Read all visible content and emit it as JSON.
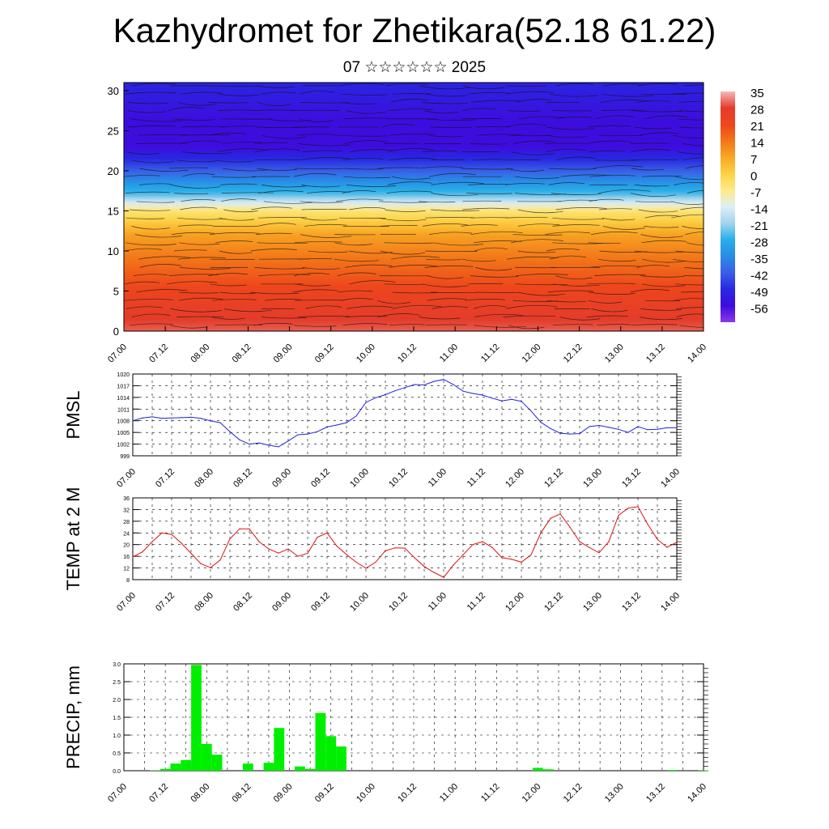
{
  "title": "Kazhydromet for Zhetikara(52.18 61.22)",
  "subtitle": "07 ☆☆☆☆☆☆ 2025",
  "time_labels": [
    "07.00",
    "07.12",
    "08.00",
    "08.12",
    "09.00",
    "09.12",
    "10.00",
    "10.12",
    "11.00",
    "11.12",
    "12.00",
    "12.12",
    "13.00",
    "13.12",
    "14.00"
  ],
  "chart_data": [
    {
      "type": "heatmap",
      "title": "",
      "xlabel": "",
      "ylabel": "",
      "x_ticks": [
        "07.00",
        "07.12",
        "08.00",
        "08.12",
        "09.00",
        "09.12",
        "10.00",
        "10.12",
        "11.00",
        "11.12",
        "12.00",
        "12.12",
        "13.00",
        "13.12",
        "14.00"
      ],
      "y_ticks": [
        0,
        5,
        10,
        15,
        20,
        25,
        30
      ],
      "ylim": [
        0,
        31
      ],
      "colorbar": {
        "labels": [
          "35",
          "28",
          "21",
          "14",
          "7",
          "0",
          "-7",
          "-14",
          "-21",
          "-28",
          "-35",
          "-42",
          "-49",
          "-56"
        ],
        "colors": [
          "#f5b8b8",
          "#e8402a",
          "#f07a1e",
          "#f8b632",
          "#fde88a",
          "#dfeef6",
          "#27aee8",
          "#3a5ee6",
          "#3d0dde",
          "#8a38e6"
        ]
      },
      "layers": [
        {
          "height": 0,
          "value": 30
        },
        {
          "height": 4,
          "value": 24
        },
        {
          "height": 8,
          "value": 16
        },
        {
          "height": 12,
          "value": 8
        },
        {
          "height": 15,
          "value": -5
        },
        {
          "height": 17,
          "value": -25
        },
        {
          "height": 20,
          "value": -42
        },
        {
          "height": 23,
          "value": -56
        },
        {
          "height": 26,
          "value": -56
        },
        {
          "height": 31,
          "value": -50
        }
      ]
    },
    {
      "type": "line",
      "ylabel": "PMSL",
      "yticks": [
        999,
        1002,
        1005,
        1008,
        1011,
        1014,
        1017,
        1020
      ],
      "ylim": [
        999,
        1020
      ],
      "color": "#2222dd",
      "x": [
        "07.00",
        "07.03",
        "07.06",
        "07.09",
        "07.12",
        "07.15",
        "07.18",
        "07.21",
        "08.00",
        "08.03",
        "08.06",
        "08.09",
        "08.12",
        "08.15",
        "08.18",
        "08.21",
        "09.00",
        "09.03",
        "09.06",
        "09.09",
        "09.12",
        "09.15",
        "09.18",
        "09.21",
        "10.00",
        "10.03",
        "10.06",
        "10.09",
        "10.12",
        "10.15",
        "10.18",
        "10.21",
        "11.00",
        "11.03",
        "11.06",
        "11.09",
        "11.12",
        "11.15",
        "11.18",
        "11.21",
        "12.00",
        "12.03",
        "12.06",
        "12.09",
        "12.12",
        "12.15",
        "12.18",
        "12.21",
        "13.00",
        "13.03",
        "13.06",
        "13.09",
        "13.12",
        "13.15",
        "13.18",
        "13.21",
        "14.00"
      ],
      "values": [
        1008,
        1008.7,
        1009,
        1008.6,
        1008.7,
        1008.8,
        1008.9,
        1008.6,
        1008,
        1007.5,
        1005.2,
        1003.1,
        1002,
        1002.3,
        1001.7,
        1001.3,
        1002.8,
        1004.4,
        1004.6,
        1005.2,
        1006.4,
        1006.9,
        1007.5,
        1009.2,
        1012.7,
        1013.9,
        1014.7,
        1015.7,
        1016.5,
        1017.3,
        1017.2,
        1018.1,
        1018.6,
        1017.3,
        1015.6,
        1015,
        1014.6,
        1013.8,
        1013.1,
        1013.5,
        1013,
        1010.5,
        1007.6,
        1006,
        1004.8,
        1004.6,
        1004.7,
        1006.5,
        1006.8,
        1006.3,
        1005.8,
        1005,
        1006.5,
        1005.7,
        1005.8,
        1006.2,
        1006.2
      ]
    },
    {
      "type": "line",
      "ylabel": "TEMP at 2 M",
      "yticks": [
        8,
        12,
        16,
        20,
        24,
        28,
        32,
        36
      ],
      "ylim": [
        8,
        36
      ],
      "color": "#dd1111",
      "x": [
        "07.00",
        "07.03",
        "07.06",
        "07.09",
        "07.12",
        "07.15",
        "07.18",
        "07.21",
        "08.00",
        "08.03",
        "08.06",
        "08.09",
        "08.12",
        "08.15",
        "08.18",
        "08.21",
        "09.00",
        "09.03",
        "09.06",
        "09.09",
        "09.12",
        "09.15",
        "09.18",
        "09.21",
        "10.00",
        "10.03",
        "10.06",
        "10.09",
        "10.12",
        "10.15",
        "10.18",
        "10.21",
        "11.00",
        "11.03",
        "11.06",
        "11.09",
        "11.12",
        "11.15",
        "11.18",
        "11.21",
        "12.00",
        "12.03",
        "12.06",
        "12.09",
        "12.12",
        "12.15",
        "12.18",
        "12.21",
        "13.00",
        "13.03",
        "13.06",
        "13.09",
        "13.12",
        "13.15",
        "13.18",
        "13.21",
        "14.00"
      ],
      "values": [
        15.8,
        17.5,
        21,
        24,
        23.5,
        20.5,
        17,
        13.5,
        12.1,
        14.7,
        22,
        25.4,
        25.4,
        21,
        18.5,
        17.1,
        18.5,
        16,
        17,
        22.5,
        24,
        19.5,
        16.6,
        14,
        11.9,
        14,
        17.9,
        18.9,
        18.8,
        15.5,
        12.5,
        10.5,
        8.8,
        13,
        16.5,
        20,
        21,
        19,
        15.5,
        15,
        14,
        16.5,
        24,
        29,
        30.5,
        26,
        21,
        19,
        17.2,
        21,
        30,
        32.5,
        33,
        27,
        21.8,
        19.1,
        20.8
      ]
    },
    {
      "type": "bar",
      "ylabel": "PRECIP, mm",
      "yticks": [
        "0.0",
        "0.5",
        "1.0",
        "1.5",
        "2.0",
        "2.5",
        "3.0"
      ],
      "ylim": [
        0,
        3.0
      ],
      "color": "#00ee00",
      "x": [
        "07.00",
        "07.03",
        "07.06",
        "07.09",
        "07.12",
        "07.15",
        "07.18",
        "07.21",
        "08.00",
        "08.03",
        "08.06",
        "08.09",
        "08.12",
        "08.15",
        "08.18",
        "08.21",
        "09.00",
        "09.03",
        "09.06",
        "09.09",
        "09.12",
        "09.15",
        "09.18",
        "09.21",
        "10.00",
        "10.03",
        "10.06",
        "10.09",
        "10.12",
        "10.15",
        "10.18",
        "10.21",
        "11.00",
        "11.03",
        "11.06",
        "11.09",
        "11.12",
        "11.15",
        "11.18",
        "11.21",
        "12.00",
        "12.03",
        "12.06",
        "12.09",
        "12.12",
        "12.15",
        "12.18",
        "12.21",
        "13.00",
        "13.03",
        "13.06",
        "13.09",
        "13.12",
        "13.15",
        "13.18",
        "13.21",
        "14.00"
      ],
      "values": [
        0,
        0,
        0,
        0.01,
        0.05,
        0.2,
        0.3,
        2.97,
        0.75,
        0.45,
        0,
        0,
        0.2,
        0,
        0.22,
        1.2,
        0,
        0.12,
        0.05,
        1.62,
        0.97,
        0.68,
        0,
        0,
        0,
        0,
        0,
        0,
        0,
        0,
        0,
        0,
        0,
        0,
        0,
        0,
        0,
        0,
        0,
        0,
        0.08,
        0.04,
        0,
        0,
        0,
        0,
        0,
        0,
        0,
        0,
        0,
        0,
        0,
        0.02,
        0,
        0,
        0.01
      ]
    }
  ]
}
